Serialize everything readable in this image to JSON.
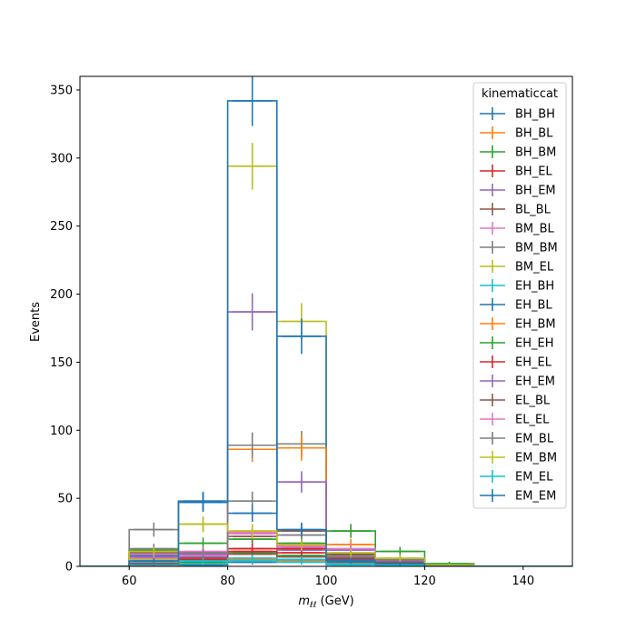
{
  "chart_data": {
    "type": "histogram-step",
    "xlabel_main": "m",
    "xlabel_sub": "ℓℓ",
    "xlabel_unit": " (GeV)",
    "ylabel": "Events",
    "xlim": [
      50,
      150
    ],
    "ylim": [
      0,
      360
    ],
    "xticks": [
      60,
      80,
      100,
      120,
      140
    ],
    "yticks": [
      0,
      50,
      100,
      150,
      200,
      250,
      300,
      350
    ],
    "bin_edges": [
      60,
      70,
      80,
      90,
      100,
      110,
      120,
      130
    ],
    "legend_title": "kinematiccat",
    "legend_position": "upper right",
    "series": [
      {
        "name": "BH_BH",
        "color": "#1f77b4",
        "values": [
          0,
          1,
          3,
          5,
          2,
          0,
          0
        ]
      },
      {
        "name": "BH_BL",
        "color": "#ff7f0e",
        "values": [
          1,
          2,
          5,
          4,
          3,
          1,
          0
        ]
      },
      {
        "name": "BH_BM",
        "color": "#2ca02c",
        "values": [
          2,
          3,
          10,
          8,
          4,
          1,
          0
        ]
      },
      {
        "name": "BH_EL",
        "color": "#d62728",
        "values": [
          3,
          6,
          11,
          10,
          4,
          2,
          0
        ]
      },
      {
        "name": "BH_EM",
        "color": "#9467bd",
        "values": [
          4,
          7,
          13,
          12,
          5,
          3,
          0
        ]
      },
      {
        "name": "BL_BL",
        "color": "#8c564b",
        "values": [
          5,
          6,
          9,
          7,
          3,
          1,
          0
        ]
      },
      {
        "name": "BM_BL",
        "color": "#e377c2",
        "values": [
          6,
          8,
          24,
          14,
          6,
          3,
          0
        ]
      },
      {
        "name": "BM_BM",
        "color": "#7f7f7f",
        "values": [
          27,
          47,
          48,
          90,
          8,
          5,
          1
        ]
      },
      {
        "name": "BM_EL",
        "color": "#bcbd22",
        "values": [
          5,
          31,
          294,
          180,
          7,
          2,
          1
        ]
      },
      {
        "name": "EH_BH",
        "color": "#17becf",
        "values": [
          1,
          2,
          4,
          3,
          1,
          0,
          0
        ]
      },
      {
        "name": "EH_BL",
        "color": "#1f77b4",
        "values": [
          8,
          48,
          39,
          169,
          5,
          3,
          1
        ]
      },
      {
        "name": "EH_BM",
        "color": "#ff7f0e",
        "values": [
          9,
          10,
          86,
          87,
          16,
          4,
          1
        ]
      },
      {
        "name": "EH_EH",
        "color": "#2ca02c",
        "values": [
          12,
          17,
          20,
          17,
          26,
          11,
          2
        ]
      },
      {
        "name": "EH_EL",
        "color": "#d62728",
        "values": [
          2,
          5,
          13,
          13,
          6,
          2,
          0
        ]
      },
      {
        "name": "EH_EM",
        "color": "#9467bd",
        "values": [
          7,
          9,
          187,
          62,
          12,
          4,
          0
        ]
      },
      {
        "name": "EL_BL",
        "color": "#8c564b",
        "values": [
          10,
          10,
          22,
          26,
          9,
          3,
          0
        ]
      },
      {
        "name": "EL_EL",
        "color": "#e377c2",
        "values": [
          9,
          11,
          25,
          15,
          13,
          5,
          1
        ]
      },
      {
        "name": "EM_BL",
        "color": "#7f7f7f",
        "values": [
          13,
          10,
          89,
          23,
          7,
          5,
          1
        ]
      },
      {
        "name": "EM_BM",
        "color": "#bcbd22",
        "values": [
          11,
          31,
          26,
          16,
          10,
          6,
          1
        ]
      },
      {
        "name": "EM_EL",
        "color": "#17becf",
        "values": [
          3,
          4,
          6,
          5,
          2,
          1,
          0
        ]
      },
      {
        "name": "EM_EM",
        "color": "#1f77b4",
        "values": [
          4,
          47,
          342,
          27,
          4,
          2,
          0
        ]
      }
    ]
  }
}
